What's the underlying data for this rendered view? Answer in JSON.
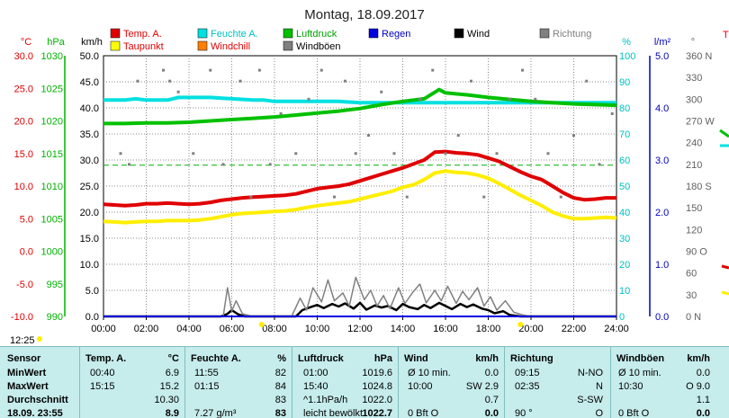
{
  "chart_data": {
    "type": "line",
    "title": "Montag, 18.09.2017",
    "x_ticks": [
      "00:00",
      "02:00",
      "04:00",
      "06:00",
      "08:00",
      "10:00",
      "12:00",
      "14:00",
      "16:00",
      "18:00",
      "20:00",
      "22:00",
      "24:00"
    ],
    "axes": {
      "temp": {
        "unit": "°C",
        "min": -10,
        "max": 30,
        "ticks": [
          "30.0",
          "25.0",
          "20.0",
          "15.0",
          "10.0",
          "5.0",
          "0.0",
          "-5.0",
          "-10.0"
        ],
        "color": "#e00000"
      },
      "press": {
        "unit": "hPa",
        "min": 990,
        "max": 1030,
        "ticks": [
          "1030",
          "1025",
          "1020",
          "1015",
          "1010",
          "1005",
          "1000",
          "995",
          "990"
        ],
        "color": "#00b000"
      },
      "wind": {
        "unit": "km/h",
        "min": 0,
        "max": 50,
        "ticks": [
          "50.0",
          "45.0",
          "40.0",
          "35.0",
          "30.0",
          "25.0",
          "20.0",
          "15.0",
          "10.0",
          "5.0",
          "0.0"
        ],
        "color": "#000000"
      },
      "hum": {
        "unit": "%",
        "min": 0,
        "max": 100,
        "ticks": [
          "100",
          "90",
          "80",
          "70",
          "60",
          "50",
          "40",
          "30",
          "20",
          "10",
          "0"
        ],
        "color": "#00c0c0"
      },
      "rain": {
        "unit": "l/m²",
        "min": 0,
        "max": 5,
        "ticks": [
          "5.0",
          "4.0",
          "3.0",
          "2.0",
          "1.0",
          "0.0"
        ],
        "color": "#0000c0"
      },
      "dir": {
        "unit": "°",
        "min": 0,
        "max": 360,
        "ticks": [
          "360 N",
          "330",
          "300",
          "270 W",
          "240",
          "210",
          "180 S",
          "150",
          "120",
          "90 O",
          "60",
          "30",
          "0 N"
        ],
        "color": "#606060"
      }
    },
    "legend": [
      {
        "name": "Temp. A.",
        "color": "#e00000",
        "text_color": "#e00000"
      },
      {
        "name": "Feuchte A.",
        "color": "#00e0e0",
        "text_color": "#00c0c0"
      },
      {
        "name": "Luftdruck",
        "color": "#00c000",
        "text_color": "#00a000"
      },
      {
        "name": "Regen",
        "color": "#0000e0",
        "text_color": "#0000c0"
      },
      {
        "name": "Wind",
        "color": "#000000",
        "text_color": "#000000"
      },
      {
        "name": "Richtung",
        "color": "#808080",
        "text_color": "#808080"
      },
      {
        "name": "Taupunkt",
        "color": "#ffff00",
        "text_color": "#e00000"
      },
      {
        "name": "Windchill",
        "color": "#ff8000",
        "text_color": "#e00000"
      },
      {
        "name": "Windböen",
        "color": "#808080",
        "text_color": "#000000"
      }
    ],
    "series": [
      {
        "name": "Temp. A.",
        "axis": "temp",
        "color": "#e00000",
        "x": [
          0,
          0.5,
          1,
          1.5,
          2,
          2.5,
          3,
          3.5,
          4,
          4.5,
          5,
          5.5,
          6,
          6.5,
          7,
          7.5,
          8,
          8.5,
          9,
          9.5,
          10,
          10.5,
          11,
          11.5,
          12,
          12.5,
          13,
          13.5,
          14,
          14.5,
          15,
          15.5,
          16,
          16.5,
          17,
          17.5,
          18,
          18.5,
          19,
          19.5,
          20,
          20.5,
          21,
          21.5,
          22,
          22.5,
          23,
          23.5,
          24
        ],
        "y": [
          7.2,
          7.1,
          7.0,
          7.1,
          7.3,
          7.3,
          7.4,
          7.3,
          7.2,
          7.3,
          7.5,
          7.8,
          8.0,
          8.2,
          8.3,
          8.4,
          8.5,
          8.6,
          8.8,
          9.2,
          9.6,
          9.8,
          10.0,
          10.3,
          10.8,
          11.3,
          11.8,
          12.3,
          12.8,
          13.4,
          14.0,
          15.2,
          15.3,
          15.1,
          15.0,
          14.8,
          14.3,
          13.8,
          13.0,
          12.2,
          11.5,
          11.0,
          10.0,
          9.0,
          8.2,
          7.9,
          8.0,
          8.2,
          8.2
        ]
      },
      {
        "name": "Taupunkt",
        "axis": "temp",
        "color": "#ffee00",
        "x": [
          0,
          0.5,
          1,
          1.5,
          2,
          2.5,
          3,
          3.5,
          4,
          4.5,
          5,
          5.5,
          6,
          6.5,
          7,
          7.5,
          8,
          8.5,
          9,
          9.5,
          10,
          10.5,
          11,
          11.5,
          12,
          12.5,
          13,
          13.5,
          14,
          14.5,
          15,
          15.5,
          16,
          16.5,
          17,
          17.5,
          18,
          18.5,
          19,
          19.5,
          20,
          20.5,
          21,
          21.5,
          22,
          22.5,
          23,
          23.5,
          24
        ],
        "y": [
          4.6,
          4.5,
          4.4,
          4.5,
          4.6,
          4.6,
          4.7,
          4.7,
          4.7,
          4.8,
          5.0,
          5.3,
          5.6,
          5.8,
          5.9,
          6.0,
          6.1,
          6.2,
          6.4,
          6.7,
          7.0,
          7.2,
          7.4,
          7.6,
          8.0,
          8.4,
          8.8,
          9.2,
          9.8,
          10.2,
          11.0,
          12.0,
          12.3,
          12.1,
          12.0,
          11.7,
          11.2,
          10.4,
          9.5,
          8.6,
          7.8,
          7.0,
          6.0,
          5.4,
          5.0,
          5.0,
          5.1,
          5.2,
          5.1
        ]
      },
      {
        "name": "Feuchte A.",
        "axis": "hum",
        "color": "#00e0e0",
        "x": [
          0,
          1,
          1.5,
          2,
          3,
          3.5,
          4,
          5,
          6,
          7,
          7.5,
          8,
          9,
          10,
          11,
          12,
          13,
          14,
          15,
          16,
          17,
          18,
          19,
          20,
          21,
          22,
          23,
          24
        ],
        "y": [
          83,
          83,
          83.5,
          83,
          83,
          84,
          84,
          84,
          83.5,
          83,
          83,
          82.5,
          82.5,
          82.5,
          82.5,
          82,
          82,
          82,
          82,
          82,
          82,
          82,
          82,
          82,
          82,
          82,
          82,
          82
        ]
      },
      {
        "name": "Luftdruck",
        "axis": "press",
        "color": "#00c000",
        "x": [
          0,
          1,
          2,
          3,
          4,
          5,
          6,
          7,
          8,
          9,
          10,
          11,
          12,
          13,
          14,
          15,
          15.7,
          16,
          17,
          18,
          19,
          20,
          21,
          22,
          23,
          24
        ],
        "y": [
          1019.6,
          1019.6,
          1019.7,
          1019.7,
          1019.8,
          1020.0,
          1020.2,
          1020.4,
          1020.6,
          1020.9,
          1021.2,
          1021.5,
          1021.9,
          1022.5,
          1023.0,
          1023.4,
          1024.8,
          1024.3,
          1024.0,
          1023.6,
          1023.3,
          1023.0,
          1022.8,
          1022.6,
          1022.5,
          1022.4
        ]
      },
      {
        "name": "Wind",
        "axis": "wind",
        "color": "#000000",
        "x": [
          0,
          5.5,
          5.8,
          6.0,
          6.3,
          6.6,
          7,
          8,
          9,
          9.3,
          9.7,
          10,
          10.3,
          10.7,
          11,
          11.3,
          11.7,
          12,
          12.3,
          12.7,
          13,
          13.3,
          13.7,
          14,
          14.3,
          14.7,
          15,
          15.3,
          15.7,
          16,
          16.3,
          16.7,
          17,
          17.3,
          17.7,
          18,
          18.3,
          18.7,
          19,
          19.5,
          20,
          22,
          24
        ],
        "y": [
          0,
          0,
          0.5,
          1.2,
          0.4,
          0,
          0,
          0,
          0,
          1.2,
          1.8,
          2.2,
          1.6,
          2.4,
          1.9,
          2.5,
          1.5,
          2.6,
          1.3,
          2.1,
          1.7,
          2.0,
          1.2,
          2.4,
          1.8,
          1.4,
          2.2,
          1.6,
          2.6,
          2.0,
          1.4,
          2.4,
          1.8,
          2.3,
          1.5,
          1.2,
          0.6,
          1.0,
          0.3,
          0,
          0,
          0,
          0
        ]
      },
      {
        "name": "Windböen",
        "axis": "wind",
        "color": "#808080",
        "x": [
          0,
          5.6,
          5.8,
          6.0,
          6.2,
          6.5,
          7,
          8.8,
          9.2,
          9.5,
          9.8,
          10.2,
          10.5,
          10.8,
          11.2,
          11.5,
          11.8,
          12.2,
          12.5,
          12.8,
          13.1,
          13.4,
          13.8,
          14.1,
          14.5,
          14.8,
          15.1,
          15.5,
          15.8,
          16.1,
          16.5,
          16.8,
          17.1,
          17.5,
          17.8,
          18.1,
          18.4,
          18.8,
          19.2,
          19.6,
          20,
          24
        ],
        "y": [
          0,
          0,
          5.5,
          1.0,
          3.0,
          0.5,
          0,
          0,
          3.5,
          1.2,
          5.5,
          2.8,
          7.0,
          3.0,
          4.5,
          2.0,
          7.5,
          3.2,
          5.0,
          2.0,
          4.0,
          1.5,
          5.5,
          2.5,
          4.8,
          6.2,
          2.6,
          5.0,
          3.0,
          5.8,
          2.5,
          4.8,
          3.2,
          5.5,
          2.0,
          3.8,
          1.2,
          3.0,
          0.8,
          0.3,
          0,
          0
        ]
      },
      {
        "name": "Regen",
        "axis": "rain",
        "color": "#0000e0",
        "x": [
          0,
          24
        ],
        "y": [
          0,
          0
        ]
      },
      {
        "name": "Richtung",
        "axis": "dir",
        "color": "#808080",
        "x": [
          0.8,
          1.2,
          1.6,
          2.8,
          3.1,
          3.5,
          4.2,
          5.0,
          5.6,
          6.4,
          6.9,
          7.3,
          7.8,
          8.3,
          9.0,
          9.6,
          10.2,
          10.8,
          11.3,
          11.8,
          12.4,
          13.0,
          13.6,
          14.2,
          14.8,
          15.4,
          16.0,
          16.6,
          17.2,
          17.8,
          18.4,
          19.0,
          19.6,
          20.2,
          20.8,
          21.4,
          22.0,
          22.6,
          23.2,
          23.8
        ],
        "y": [
          225,
          210,
          325,
          340,
          325,
          310,
          225,
          340,
          210,
          325,
          165,
          340,
          210,
          280,
          225,
          300,
          340,
          165,
          325,
          225,
          250,
          310,
          225,
          165,
          300,
          340,
          225,
          250,
          325,
          165,
          225,
          300,
          340,
          300,
          225,
          165,
          250,
          325,
          210,
          280
        ]
      }
    ],
    "dashed_line": {
      "axis": "hum",
      "value": 58,
      "color": "#00b000"
    }
  },
  "footer_left": {
    "time": "12:25"
  },
  "table": {
    "headers": [
      "Sensor",
      "Temp. A.",
      "°C",
      "Feuchte A.",
      "%",
      "Luftdruck",
      "hPa",
      "Wind",
      "km/h",
      "Richtung",
      "Windböen",
      "km/h"
    ],
    "rows": [
      {
        "label": "MinWert",
        "t_time": "00:40",
        "t_val": "6.9",
        "h_time": "11:55",
        "h_val": "82",
        "p_time": "01:00",
        "p_val": "1019.6",
        "w_info": "Ø 10 min.",
        "w_val": "0.0",
        "r_time": "09:15",
        "r_val": "N-NO",
        "g_info": "Ø 10 min.",
        "g_val": "0.0"
      },
      {
        "label": "MaxWert",
        "t_time": "15:15",
        "t_val": "15.2",
        "h_time": "01:15",
        "h_val": "84",
        "p_time": "15:40",
        "p_val": "1024.8",
        "w_info": "10:00",
        "w_val": "SW 2.9",
        "r_time": "02:35",
        "r_val": "N",
        "g_info": "10:30",
        "g_val": "O 9.0"
      },
      {
        "label": "Durchschnitt",
        "t_time": "",
        "t_val": "10.30",
        "h_time": "",
        "h_val": "83",
        "p_time": "^1.1hPa/h",
        "p_val": "1022.0",
        "w_info": "",
        "w_val": "0.7",
        "r_time": "",
        "r_val": "S-SW",
        "g_info": "",
        "g_val": "1.1"
      },
      {
        "label": "18.09. 23:55",
        "t_time": "",
        "t_val": "8.9",
        "h_time": "7.27 g/m³",
        "h_val": "83",
        "p_time": "leicht bewölkt",
        "p_val": "1022.7",
        "w_info": "0 Bft O",
        "w_val": "0.0",
        "r_time": "90 °",
        "r_val": "O",
        "g_info": "0 Bft O",
        "g_val": "0.0"
      }
    ]
  },
  "right_strip": {
    "label": "T"
  }
}
